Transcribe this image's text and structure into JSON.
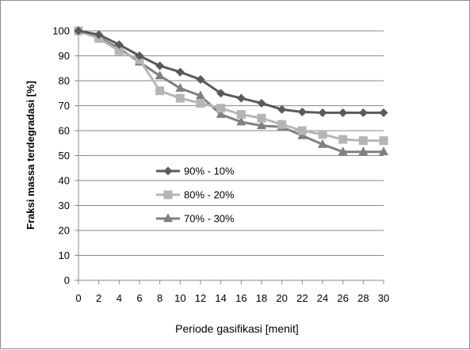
{
  "chart_data": {
    "type": "line",
    "xlabel": "Periode gasifikasi [menit]",
    "ylabel": "Fraksi massa terdegradasi [%]",
    "x": [
      0,
      2,
      4,
      6,
      8,
      10,
      12,
      14,
      16,
      18,
      20,
      22,
      24,
      26,
      28,
      30
    ],
    "xlim": [
      0,
      30
    ],
    "ylim": [
      0,
      100
    ],
    "xticks": [
      "0",
      "2",
      "4",
      "6",
      "8",
      "10",
      "12",
      "14",
      "16",
      "18",
      "20",
      "22",
      "24",
      "26",
      "28",
      "30"
    ],
    "yticks": [
      "0",
      "10",
      "20",
      "30",
      "40",
      "50",
      "60",
      "70",
      "80",
      "90",
      "100"
    ],
    "grid": "horizontal",
    "legend_position": "center-left",
    "series": [
      {
        "name": "90% - 10%",
        "marker": "diamond",
        "color": "#5a5a5a",
        "values": [
          100,
          98.5,
          94.5,
          90,
          86,
          83.5,
          80.5,
          75,
          73,
          71,
          68.5,
          67.5,
          67.2,
          67.2,
          67.2,
          67.2
        ]
      },
      {
        "name": "80% - 20%",
        "marker": "square",
        "color": "#b5b5b5",
        "values": [
          100,
          97,
          92,
          88.5,
          76,
          73,
          71,
          69,
          66.5,
          65,
          62.5,
          60,
          58.5,
          56.5,
          56,
          56
        ]
      },
      {
        "name": "70% - 30%",
        "marker": "triangle",
        "color": "#808080",
        "values": [
          100,
          97.5,
          93,
          87.5,
          82,
          77,
          74,
          66.5,
          63.5,
          62,
          61.5,
          58,
          54.5,
          51.5,
          51.5,
          51.5
        ]
      }
    ]
  }
}
